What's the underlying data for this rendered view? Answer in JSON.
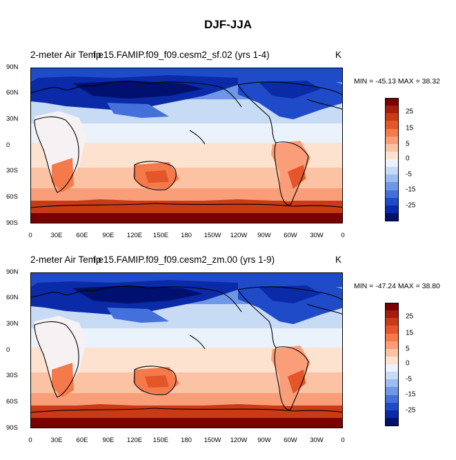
{
  "title": "DJF-JJA",
  "panels": [
    {
      "left_title": "2-meter Air Temp",
      "right_title": "f.e15.FAMIP.f09_f09.cesm2_sf.02 (yrs 1-4)",
      "units": "K",
      "minmax": "MIN = -45.13  MAX =  38.32"
    },
    {
      "left_title": "2-meter Air Temp",
      "right_title": "f.e15.FAMIP.f09_f09.cesm2_zm.00 (yrs 1-9)",
      "units": "K",
      "minmax": "MIN = -47.24  MAX =  38.80"
    }
  ],
  "lat_labels": [
    "90N",
    "60N",
    "30N",
    "0",
    "30S",
    "60S",
    "90S"
  ],
  "lon_labels": [
    "0",
    "30E",
    "60E",
    "90E",
    "120E",
    "150E",
    "180",
    "150W",
    "120W",
    "90W",
    "60W",
    "30W",
    "0"
  ],
  "colorbar": {
    "colors": [
      "#7a0000",
      "#a81c0c",
      "#c93a16",
      "#e4552a",
      "#f47a4c",
      "#f99e78",
      "#fbc2a4",
      "#fde2d0",
      "#eaf2fb",
      "#c7dbf5",
      "#9dbdf0",
      "#6e97e6",
      "#4470dc",
      "#1f4ac8",
      "#0a2aa8",
      "#00106e"
    ],
    "labels": [
      "25",
      "15",
      "5",
      "0",
      "-5",
      "-15",
      "-25"
    ]
  }
}
